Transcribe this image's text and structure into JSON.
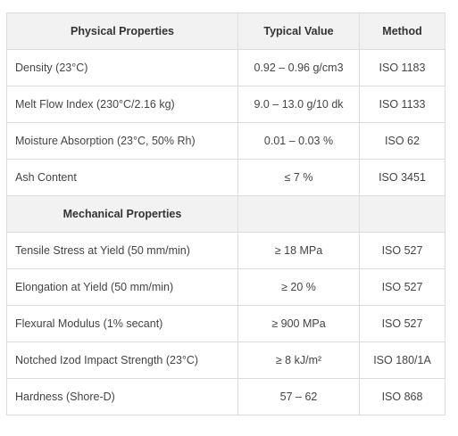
{
  "header": {
    "col_property": "Physical Properties",
    "col_value": "Typical Value",
    "col_method": "Method"
  },
  "physical": [
    {
      "property": "Density (23°C)",
      "value": "0.92 – 0.96 g/cm3",
      "method": "ISO 1183"
    },
    {
      "property": "Melt Flow Index (230°C/2.16 kg)",
      "value": "9.0 – 13.0 g/10 dk",
      "method": "ISO 1133"
    },
    {
      "property": "Moisture Absorption (23°C, 50% Rh)",
      "value": "0.01 – 0.03 %",
      "method": "ISO 62"
    },
    {
      "property": "Ash Content",
      "value": "≤ 7 %",
      "method": "ISO 3451"
    }
  ],
  "mechanical_header": {
    "title": "Mechanical Properties",
    "value": "",
    "method": ""
  },
  "mechanical": [
    {
      "property": "Tensile Stress at Yield (50 mm/min)",
      "value": "≥ 18 MPa",
      "method": "ISO 527"
    },
    {
      "property": "Elongation at Yield (50 mm/min)",
      "value": "≥ 20 %",
      "method": "ISO 527"
    },
    {
      "property": "Flexural Modulus (1% secant)",
      "value": "≥ 900 MPa",
      "method": "ISO 527"
    },
    {
      "property": "Notched Izod Impact Strength (23°C)",
      "value": "≥ 8 kJ/m²",
      "method": "ISO 180/1A"
    },
    {
      "property": "Hardness (Shore-D)",
      "value": "57 – 62",
      "method": "ISO 868"
    }
  ]
}
